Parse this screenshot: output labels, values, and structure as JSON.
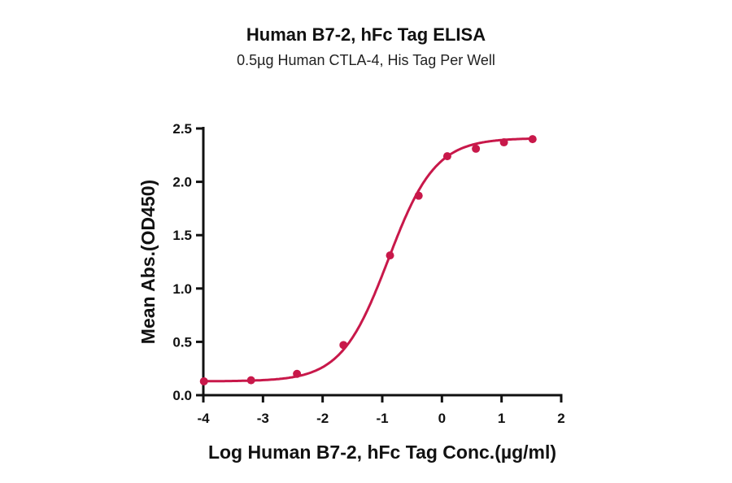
{
  "chart_data": {
    "type": "scatter",
    "title": "Human B7-2, hFc Tag ELISA",
    "subtitle": "0.5µg Human CTLA-4, His Tag Per Well",
    "xlabel": "Log Human B7-2, hFc Tag Conc.(µg/ml)",
    "ylabel": "Mean Abs.(OD450)",
    "xlim": [
      -4,
      2
    ],
    "ylim": [
      0,
      2.5
    ],
    "xticks": [
      "-4",
      "-3",
      "-2",
      "-1",
      "0",
      "1",
      "2"
    ],
    "yticks": [
      "0.0",
      "0.5",
      "1.0",
      "1.5",
      "2.0",
      "2.5"
    ],
    "grid": false,
    "fit_curve": "4-parameter logistic",
    "color": "#c8184a",
    "series": [
      {
        "x": [
          -3.99,
          -3.2,
          -2.43,
          -1.65,
          -0.87,
          -0.39,
          0.09,
          0.57,
          1.04,
          1.52
        ],
        "y": [
          0.13,
          0.14,
          0.2,
          0.47,
          1.31,
          1.87,
          2.24,
          2.31,
          2.37,
          2.4
        ]
      }
    ]
  }
}
